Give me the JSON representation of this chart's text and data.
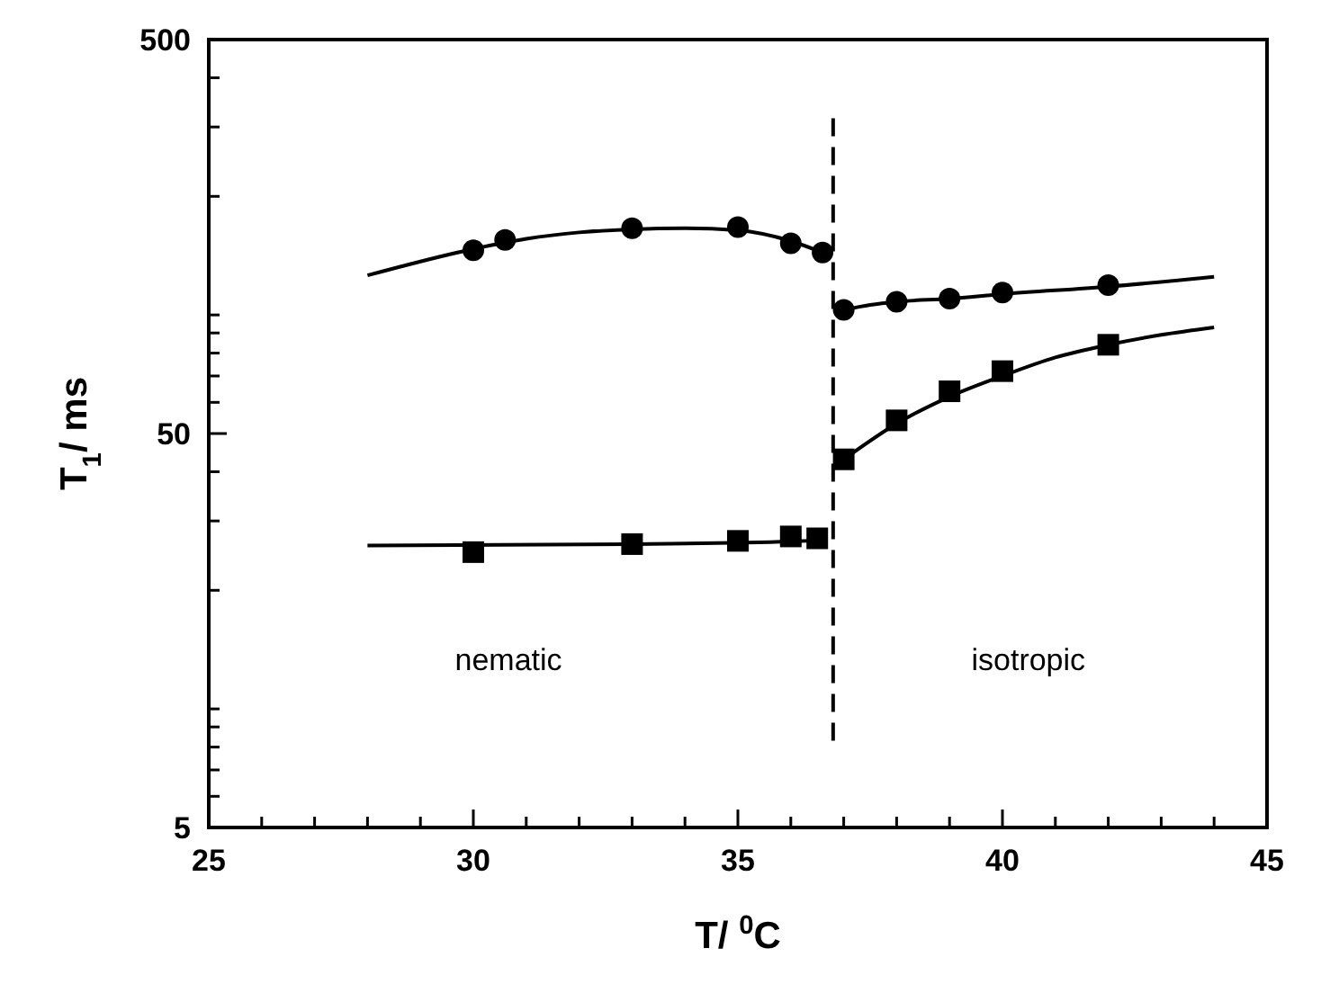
{
  "chart_data": {
    "type": "scatter",
    "xlabel": "T/ $^{0}$C",
    "ylabel": "T$_{1}$/ ms",
    "log": "y",
    "grid": false,
    "xlim": [
      25,
      45
    ],
    "xticks": [
      25,
      {
        "value": 26,
        "label": null
      },
      {
        "value": 27,
        "label": null
      },
      {
        "value": 28,
        "label": null
      },
      {
        "value": 29,
        "label": null
      },
      30,
      {
        "value": 31,
        "label": null
      },
      {
        "value": 32,
        "label": null
      },
      {
        "value": 33,
        "label": null
      },
      {
        "value": 34,
        "label": null
      },
      35,
      {
        "value": 36,
        "label": null
      },
      {
        "value": 37,
        "label": null
      },
      {
        "value": 38,
        "label": null
      },
      {
        "value": 39,
        "label": null
      },
      40,
      {
        "value": 41,
        "label": null
      },
      {
        "value": 42,
        "label": null
      },
      {
        "value": 43,
        "label": null
      },
      {
        "value": 44,
        "label": null
      },
      45
    ],
    "ylim": [
      5,
      500
    ],
    "yticks": [
      5,
      {
        "value": 6,
        "label": null
      },
      {
        "value": 7,
        "label": null
      },
      {
        "value": 8,
        "label": null
      },
      {
        "value": 9,
        "label": null
      },
      {
        "value": 10,
        "label": null
      },
      {
        "value": 20,
        "label": null
      },
      {
        "value": 30,
        "label": null
      },
      {
        "value": 40,
        "label": null
      },
      50,
      {
        "value": 60,
        "label": null
      },
      {
        "value": 70,
        "label": null
      },
      {
        "value": 80,
        "label": null
      },
      {
        "value": 90,
        "label": null
      },
      {
        "value": 100,
        "label": null
      },
      {
        "value": 200,
        "label": null
      },
      {
        "value": 300,
        "label": null
      },
      {
        "value": 400,
        "label": null
      },
      500
    ],
    "ref_lines": [
      {
        "axis": "x",
        "value": 36.8,
        "line_style": "dashed",
        "color": "#000000"
      }
    ],
    "annotations": [
      "nematic",
      "isotropic"
    ],
    "series": [
      {
        "type": "line",
        "marker": "none",
        "color": "#000000",
        "x": [
          28,
          30,
          31,
          32,
          33,
          34,
          35,
          36,
          36.6
        ],
        "values": [
          126,
          147,
          156,
          162,
          165,
          166,
          164,
          154,
          144
        ]
      },
      {
        "type": "line",
        "marker": "none",
        "color": "#000000",
        "x": [
          37,
          37.5,
          38,
          39,
          40,
          42,
          44
        ],
        "values": [
          103,
          106,
          108,
          110,
          113,
          118,
          125
        ]
      },
      {
        "type": "line",
        "marker": "none",
        "color": "#000000",
        "x": [
          37,
          38,
          39,
          40,
          41,
          42,
          43,
          44
        ],
        "values": [
          43,
          53,
          62,
          70,
          78,
          84,
          89,
          93
        ]
      },
      {
        "type": "line",
        "marker": "none",
        "color": "#000000",
        "x": [
          28,
          33,
          36,
          36.6
        ],
        "values": [
          26,
          26.2,
          26.6,
          26.8
        ]
      },
      {
        "marker": "circle",
        "color": "#000000",
        "x": [
          30,
          30.6,
          33,
          35,
          36,
          36.6
        ],
        "values": [
          146,
          155,
          166,
          167,
          152,
          144
        ]
      },
      {
        "marker": "circle",
        "color": "#000000",
        "x": [
          37,
          38,
          39,
          40,
          42
        ],
        "values": [
          103,
          108,
          110,
          114,
          119
        ]
      },
      {
        "marker": "square",
        "color": "#000000",
        "x": [
          37,
          38,
          39,
          40,
          42
        ],
        "values": [
          43,
          54,
          64,
          72,
          84
        ]
      },
      {
        "marker": "square",
        "color": "#000000",
        "x": [
          30,
          33,
          35,
          36,
          36.5
        ],
        "values": [
          25,
          26.2,
          26.7,
          27.4,
          27.1
        ]
      }
    ]
  }
}
